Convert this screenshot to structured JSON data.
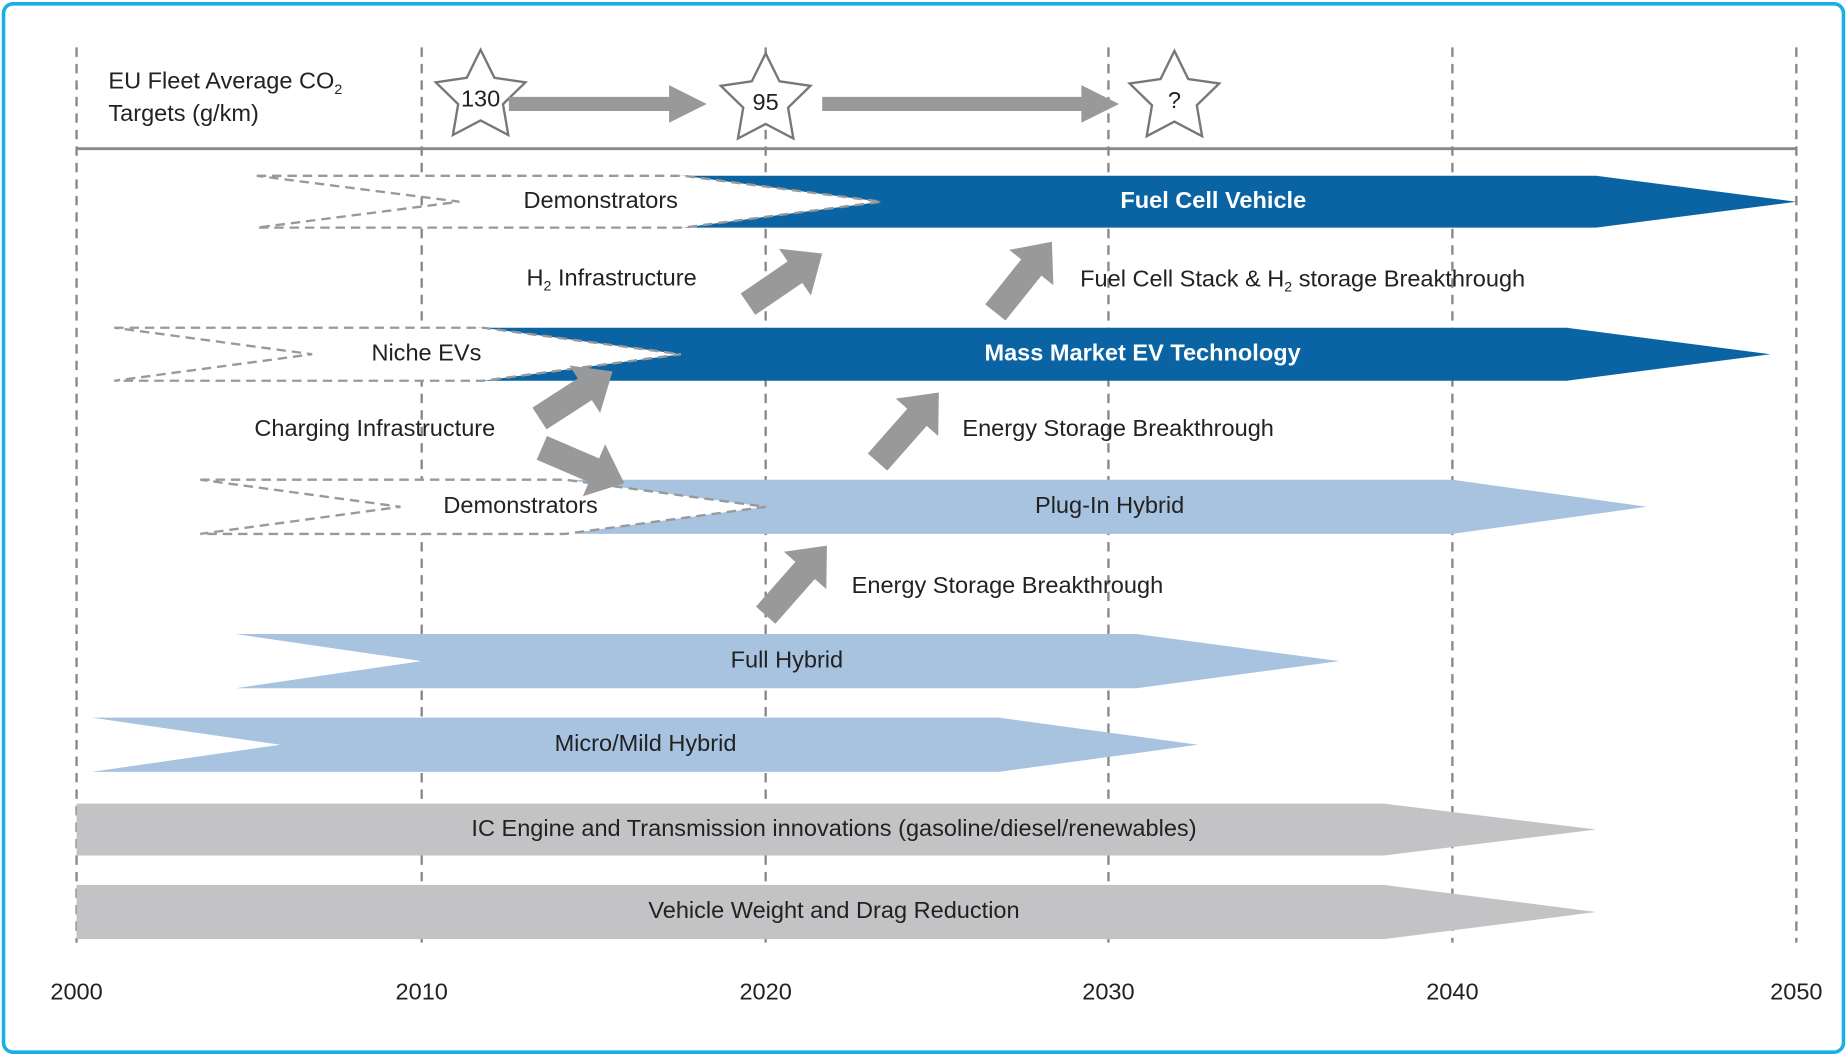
{
  "header": {
    "title_line1": "EU Fleet Average CO",
    "title_sub": "2",
    "title_line2": "Targets (g/km)"
  },
  "targets": [
    "130",
    "95",
    "?"
  ],
  "years": [
    2000,
    2010,
    2020,
    2030,
    2040,
    2050
  ],
  "bars": [
    {
      "label": "Fuel Cell Vehicle",
      "pre_label": "Demonstrators"
    },
    {
      "label": "Mass Market EV Technology",
      "pre_label": "Niche EVs"
    },
    {
      "label": "Plug-In Hybrid",
      "pre_label": "Demonstrators"
    },
    {
      "label": "Full Hybrid"
    },
    {
      "label": "Micro/Mild Hybrid"
    },
    {
      "label": "IC Engine and Transmission innovations (gasoline/diesel/renewables)"
    },
    {
      "label": "Vehicle Weight and Drag Reduction"
    }
  ],
  "enablers": [
    {
      "pre": "H",
      "sub": "2",
      "post": " Infrastructure"
    },
    {
      "pre": "Fuel Cell Stack & H",
      "sub": "2",
      "post": " storage Breakthrough"
    },
    {
      "pre": "Charging Infrastructure"
    },
    {
      "pre": "Energy Storage Breakthrough"
    },
    {
      "pre": "Energy Storage Breakthrough"
    }
  ]
}
